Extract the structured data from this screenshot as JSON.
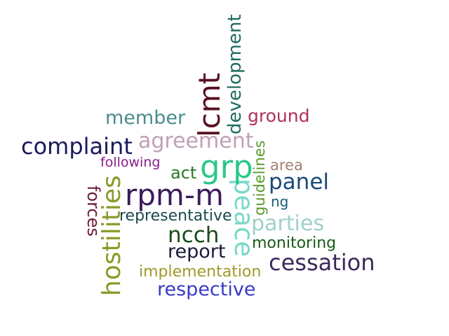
{
  "words": {
    "development": {
      "text": "development",
      "color": "#1f6b5e"
    },
    "lcmt": {
      "text": "lcmt",
      "color": "#5a1020"
    },
    "member": {
      "text": "member",
      "color": "#4a8c8a"
    },
    "ground": {
      "text": "ground",
      "color": "#b03060"
    },
    "complaint": {
      "text": "complaint",
      "color": "#1a1a5a"
    },
    "agreement": {
      "text": "agreement",
      "color": "#c0a0b8"
    },
    "guidelines": {
      "text": "guidelines",
      "color": "#5a9a2a"
    },
    "following": {
      "text": "following",
      "color": "#8a208a"
    },
    "act": {
      "text": "act",
      "color": "#2a7a2a"
    },
    "grp": {
      "text": "grp",
      "color": "#2ac88a"
    },
    "area": {
      "text": "area",
      "color": "#a08070"
    },
    "panel": {
      "text": "panel",
      "color": "#1a4a7a"
    },
    "forces": {
      "text": "forces",
      "color": "#6a1a3a"
    },
    "hostilities": {
      "text": "hostilities",
      "color": "#8a9a2a"
    },
    "rpm_m": {
      "text": "rpm-m",
      "color": "#3a1a5a"
    },
    "peace": {
      "text": "peace",
      "color": "#7ad8c8"
    },
    "ng": {
      "text": "ng",
      "color": "#1a5a7a"
    },
    "representative": {
      "text": "representative",
      "color": "#1a4a4a"
    },
    "parties": {
      "text": "parties",
      "color": "#a0d0c8"
    },
    "ncch": {
      "text": "ncch",
      "color": "#1a4a1a"
    },
    "monitoring": {
      "text": "monitoring",
      "color": "#1a5a1a"
    },
    "report": {
      "text": "report",
      "color": "#1a1a3a"
    },
    "cessation": {
      "text": "cessation",
      "color": "#3a2a5a"
    },
    "implementation": {
      "text": "implementation",
      "color": "#a09a2a"
    },
    "respective": {
      "text": "respective",
      "color": "#3a3ac8"
    }
  }
}
